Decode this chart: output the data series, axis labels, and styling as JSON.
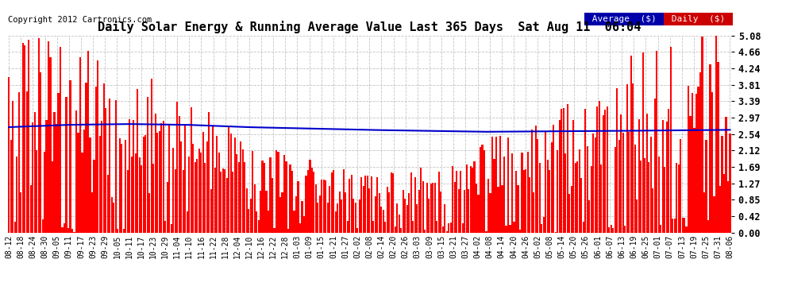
{
  "title": "Daily Solar Energy & Running Average Value Last 365 Days  Sat Aug 11  06:04",
  "copyright": "Copyright 2012 Cartronics.com",
  "bar_color": "#FF0000",
  "avg_line_color": "#0000CC",
  "background_color": "#FFFFFF",
  "grid_color": "#AAAAAA",
  "ylim": [
    0.0,
    5.08
  ],
  "yticks": [
    0.0,
    0.42,
    0.85,
    1.27,
    1.69,
    2.12,
    2.54,
    2.97,
    3.39,
    3.81,
    4.24,
    4.66,
    5.08
  ],
  "legend_avg_bg": "#0000AA",
  "legend_daily_bg": "#CC0000",
  "legend_text_color": "#FFFFFF",
  "n_bars": 365,
  "x_tick_labels": [
    "08-12",
    "08-18",
    "08-24",
    "08-30",
    "09-05",
    "09-11",
    "09-17",
    "09-23",
    "09-29",
    "10-05",
    "10-11",
    "10-17",
    "10-23",
    "10-29",
    "11-04",
    "11-10",
    "11-16",
    "11-22",
    "11-28",
    "12-04",
    "12-10",
    "12-16",
    "12-22",
    "12-28",
    "01-03",
    "01-09",
    "01-15",
    "01-21",
    "01-27",
    "02-02",
    "02-08",
    "02-14",
    "02-20",
    "02-26",
    "03-03",
    "03-09",
    "03-15",
    "03-21",
    "03-27",
    "04-02",
    "04-08",
    "04-14",
    "04-20",
    "04-26",
    "05-02",
    "05-08",
    "05-14",
    "05-20",
    "05-26",
    "06-01",
    "06-07",
    "06-13",
    "06-19",
    "06-25",
    "07-01",
    "07-07",
    "07-13",
    "07-19",
    "07-25",
    "07-31",
    "08-06"
  ],
  "title_fontsize": 11,
  "copyright_fontsize": 7.5,
  "ytick_fontsize": 8.5,
  "xtick_fontsize": 7
}
